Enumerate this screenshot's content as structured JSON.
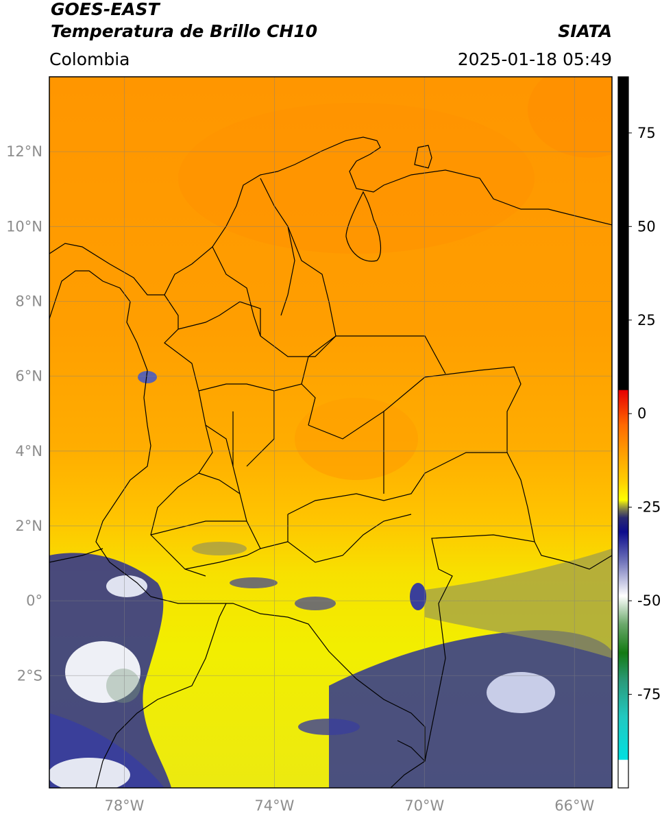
{
  "header": {
    "line1": "GOES-EAST",
    "line2": "Temperatura de Brillo CH10",
    "region": "Colombia",
    "source": "SIATA",
    "datetime": "2025-01-18 05:49"
  },
  "map": {
    "lon_range": [
      -80,
      -65
    ],
    "lat_range": [
      -5,
      14
    ],
    "lat_ticks": [
      {
        "value": 12,
        "label": "12°N"
      },
      {
        "value": 10,
        "label": "10°N"
      },
      {
        "value": 8,
        "label": "8°N"
      },
      {
        "value": 6,
        "label": "6°N"
      },
      {
        "value": 4,
        "label": "4°N"
      },
      {
        "value": 2,
        "label": "2°N"
      },
      {
        "value": 0,
        "label": "0°"
      },
      {
        "value": -2,
        "label": "2°S"
      }
    ],
    "lon_ticks": [
      {
        "value": -78,
        "label": "78°W"
      },
      {
        "value": -74,
        "label": "74°W"
      },
      {
        "value": -70,
        "label": "70°W"
      },
      {
        "value": -66,
        "label": "66°W"
      }
    ],
    "gridlines": true,
    "colors": {
      "warm": "#ff9b00",
      "mid": "#ffb300",
      "yellow": "#f2ee00",
      "cloud_dark": "#1f2a8c",
      "cloud_light": "#e9ecf5",
      "olive": "#9c9a3a",
      "border": "#000000"
    }
  },
  "colorbar": {
    "ticks": [
      {
        "value": 75,
        "label": "75"
      },
      {
        "value": 50,
        "label": "50"
      },
      {
        "value": 25,
        "label": "25"
      },
      {
        "value": 0,
        "label": "0"
      },
      {
        "value": -25,
        "label": "-25"
      },
      {
        "value": -50,
        "label": "-50"
      },
      {
        "value": -75,
        "label": "-75"
      }
    ],
    "range": [
      -100,
      90
    ]
  }
}
